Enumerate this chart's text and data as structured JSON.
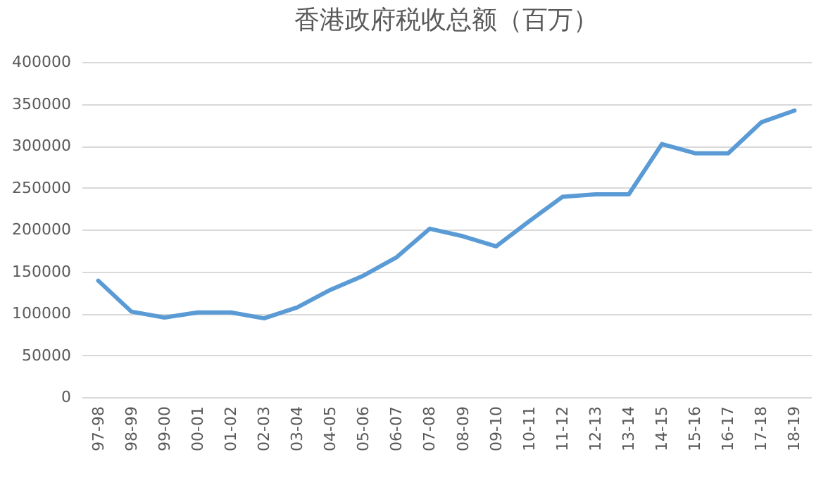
{
  "chart_data": {
    "type": "line",
    "title": "香港政府税收总额（百万）",
    "categories": [
      "97-98",
      "98-99",
      "99-00",
      "00-01",
      "01-02",
      "02-03",
      "03-04",
      "04-05",
      "05-06",
      "06-07",
      "07-08",
      "08-09",
      "09-10",
      "10-11",
      "11-12",
      "12-13",
      "13-14",
      "14-15",
      "15-16",
      "16-17",
      "17-18",
      "18-19"
    ],
    "series": [
      {
        "color": "#5b9bd5",
        "values": [
          139000,
          102000,
          95000,
          101000,
          101000,
          94000,
          107000,
          128000,
          145000,
          167000,
          201000,
          192000,
          180000,
          210000,
          239000,
          242000,
          242000,
          302000,
          291000,
          291000,
          328000,
          342000
        ]
      }
    ],
    "ylim": [
      0,
      400000
    ],
    "yticks": [
      0,
      50000,
      100000,
      150000,
      200000,
      250000,
      300000,
      350000,
      400000
    ],
    "grid": "y",
    "legend": false
  }
}
